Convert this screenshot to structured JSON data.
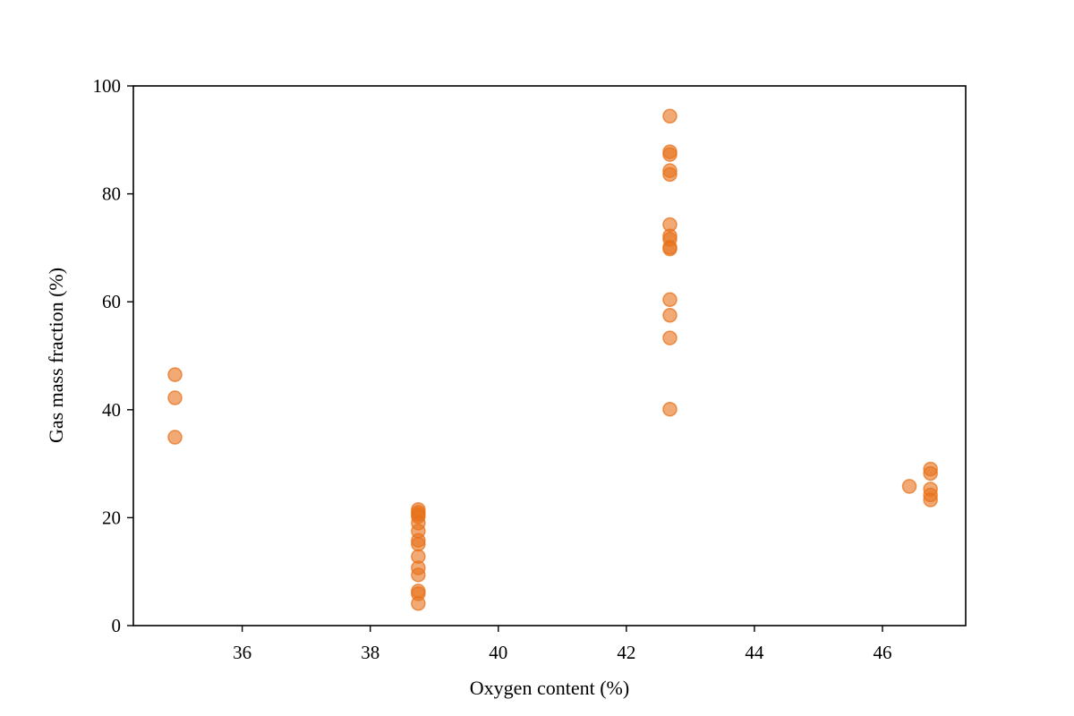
{
  "chart_data": {
    "type": "scatter",
    "title": "",
    "xlabel": "Oxygen content (%)",
    "ylabel": "Gas mass fraction (%)",
    "xlim": [
      34.3,
      47.3
    ],
    "ylim": [
      0,
      100
    ],
    "xticks": [
      36,
      38,
      40,
      42,
      44,
      46
    ],
    "yticks": [
      0,
      20,
      40,
      60,
      80,
      100
    ],
    "grid": false,
    "marker_color": "#e8711a",
    "marker_alpha": 0.6,
    "points": [
      {
        "x": 34.95,
        "y": 46.5
      },
      {
        "x": 34.95,
        "y": 42.2
      },
      {
        "x": 34.95,
        "y": 34.9
      },
      {
        "x": 38.75,
        "y": 21.5
      },
      {
        "x": 38.75,
        "y": 21.0
      },
      {
        "x": 38.75,
        "y": 20.6
      },
      {
        "x": 38.75,
        "y": 20.2
      },
      {
        "x": 38.75,
        "y": 19.0
      },
      {
        "x": 38.75,
        "y": 17.5
      },
      {
        "x": 38.75,
        "y": 15.8
      },
      {
        "x": 38.75,
        "y": 15.1
      },
      {
        "x": 38.75,
        "y": 12.8
      },
      {
        "x": 38.75,
        "y": 10.7
      },
      {
        "x": 38.75,
        "y": 9.4
      },
      {
        "x": 38.75,
        "y": 6.4
      },
      {
        "x": 38.75,
        "y": 5.9
      },
      {
        "x": 38.75,
        "y": 4.1
      },
      {
        "x": 42.68,
        "y": 94.4
      },
      {
        "x": 42.68,
        "y": 87.8
      },
      {
        "x": 42.68,
        "y": 87.3
      },
      {
        "x": 42.68,
        "y": 84.3
      },
      {
        "x": 42.68,
        "y": 83.6
      },
      {
        "x": 42.68,
        "y": 74.3
      },
      {
        "x": 42.68,
        "y": 72.2
      },
      {
        "x": 42.68,
        "y": 71.6
      },
      {
        "x": 42.68,
        "y": 70.1
      },
      {
        "x": 42.68,
        "y": 69.8
      },
      {
        "x": 42.68,
        "y": 60.4
      },
      {
        "x": 42.68,
        "y": 57.5
      },
      {
        "x": 42.68,
        "y": 53.3
      },
      {
        "x": 42.68,
        "y": 40.1
      },
      {
        "x": 46.42,
        "y": 25.8
      },
      {
        "x": 46.75,
        "y": 29.0
      },
      {
        "x": 46.75,
        "y": 28.2
      },
      {
        "x": 46.75,
        "y": 25.3
      },
      {
        "x": 46.75,
        "y": 24.2
      },
      {
        "x": 46.75,
        "y": 23.3
      }
    ]
  }
}
